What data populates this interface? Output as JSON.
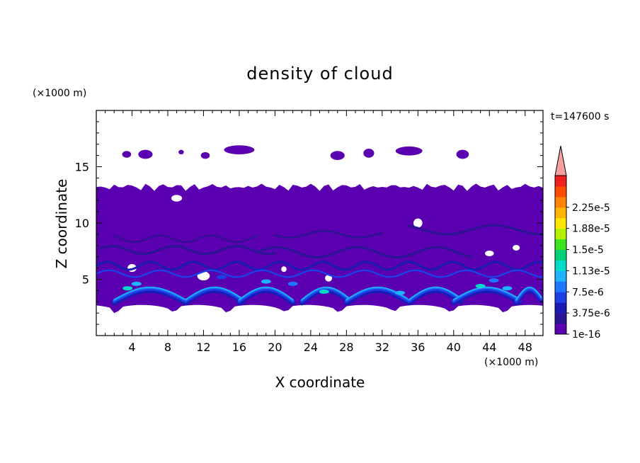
{
  "chart_data": {
    "type": "heatmap",
    "title": "density of cloud",
    "xlabel": "X coordinate",
    "ylabel": "Z coordinate",
    "x_unit": "(×1000 m)",
    "y_unit": "(×1000 m)",
    "time_label": "t=147600 s",
    "xlim": [
      0,
      50
    ],
    "ylim": [
      0,
      20
    ],
    "xticks": [
      4,
      8,
      12,
      16,
      20,
      24,
      28,
      32,
      36,
      40,
      44,
      48
    ],
    "yticks": [
      5,
      10,
      15
    ],
    "colorbar": {
      "labels": [
        "1e-16",
        "3.75e-6",
        "7.5e-6",
        "1.13e-5",
        "1.5e-5",
        "1.88e-5",
        "2.25e-5"
      ],
      "min": 0,
      "max": 2.625e-05,
      "extend": "max",
      "colors": [
        "#5a00b0",
        "#2a1494",
        "#1a1ab4",
        "#1e3ee6",
        "#1e78ff",
        "#1eb4ff",
        "#00dcc8",
        "#00d27a",
        "#3ce61e",
        "#b4f000",
        "#ffe600",
        "#ffb400",
        "#ff8200",
        "#ff4b00",
        "#f01e1e"
      ],
      "over_color": "#f5a0a0"
    },
    "regions": {
      "main_layer_z": [
        2.5,
        13.5
      ],
      "upper_patches_z": [
        15.5,
        17
      ],
      "high_density_band_z": [
        3,
        5
      ]
    }
  }
}
